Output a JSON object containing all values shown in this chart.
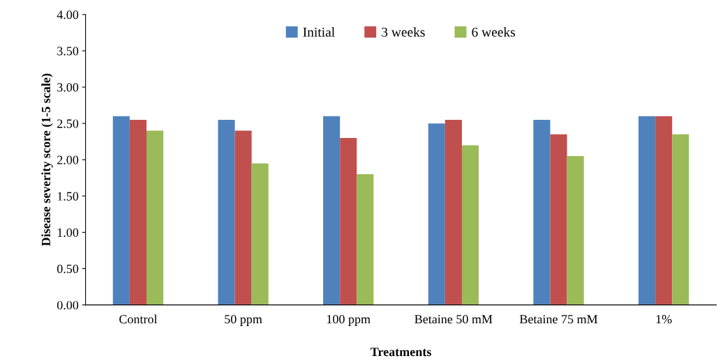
{
  "chart_data": {
    "type": "bar",
    "xlabel": "Treatments",
    "ylabel": "Disease severity score (1-5 scale)",
    "categories": [
      "Control",
      "50 ppm",
      "100 ppm",
      "Betaine 50 mM",
      "Betaine 75 mM",
      "1%"
    ],
    "series": [
      {
        "name": "Initial",
        "color": "#4f81bd",
        "values": [
          2.6,
          2.55,
          2.6,
          2.5,
          2.55,
          2.6
        ]
      },
      {
        "name": "3 weeks",
        "color": "#c0504d",
        "values": [
          2.55,
          2.4,
          2.3,
          2.55,
          2.35,
          2.6
        ]
      },
      {
        "name": "6 weeks",
        "color": "#9bbb59",
        "values": [
          2.4,
          1.95,
          1.8,
          2.2,
          2.05,
          2.35
        ]
      }
    ],
    "ylim": [
      0,
      4
    ],
    "yticks": [
      {
        "value": 0,
        "label": "0.00"
      },
      {
        "value": 0.5,
        "label": "0.50"
      },
      {
        "value": 1,
        "label": "1.00"
      },
      {
        "value": 1.5,
        "label": "1.50"
      },
      {
        "value": 2,
        "label": "2.00"
      },
      {
        "value": 2.5,
        "label": "2.50"
      },
      {
        "value": 3,
        "label": "3.00"
      },
      {
        "value": 3.5,
        "label": "3.50"
      },
      {
        "value": 4,
        "label": "4.00"
      }
    ],
    "grid": false,
    "legend": "top"
  }
}
